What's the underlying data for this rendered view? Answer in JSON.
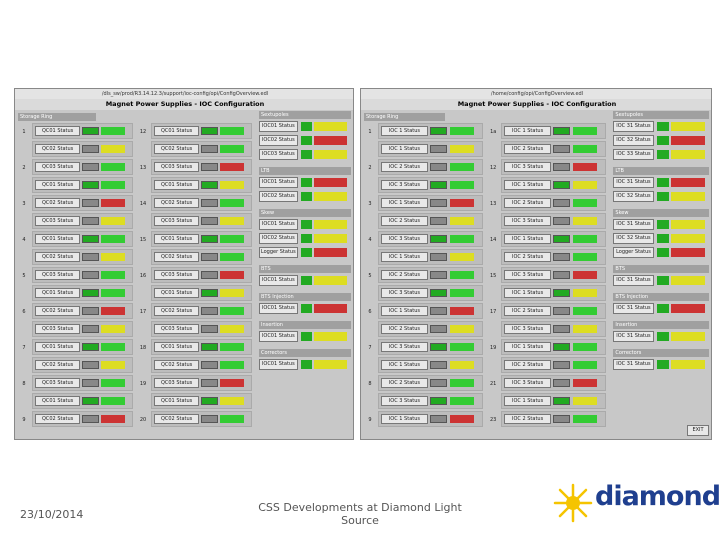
{
  "left_window": {
    "path": "/dls_sw/prod/R3.14.12.3/support/ioc-config/opi/ConfigOverview.edl",
    "title": "Magnet Power Supplies - IOC Configuration",
    "tab": "Storage Ring",
    "columns": [
      {
        "numbers": [
          "1",
          "2",
          "3",
          "4",
          "5",
          "6",
          "7",
          "8",
          "9"
        ],
        "rows": [
          "QC01 Status",
          "QC02 Status",
          "QC03 Status",
          "QC01 Status",
          "QC02 Status",
          "QC03 Status",
          "QC01 Status",
          "QC02 Status",
          "QC03 Status",
          "QC01 Status",
          "QC02 Status",
          "QC03 Status",
          "QC01 Status",
          "QC02 Status",
          "QC03 Status",
          "QC01 Status",
          "QC02 Status"
        ]
      },
      {
        "numbers": [
          "12",
          "13",
          "14",
          "15",
          "16",
          "17",
          "18",
          "19",
          "20"
        ],
        "rows": [
          "QC01 Status",
          "QC02 Status",
          "QC03 Status",
          "QC01 Status",
          "QC02 Status",
          "QC03 Status",
          "QC01 Status",
          "QC02 Status",
          "QC03 Status",
          "QC01 Status",
          "QC02 Status",
          "QC03 Status",
          "QC01 Status",
          "QC02 Status",
          "QC03 Status",
          "QC01 Status",
          "QC02 Status"
        ]
      }
    ],
    "sections": [
      {
        "header": "Sextupoles",
        "rows": [
          "IOC01 Status",
          "IOC02 Status",
          "IOC03 Status"
        ]
      },
      {
        "header": "LTB",
        "rows": [
          "IOC01 Status",
          "IOC02 Status"
        ]
      },
      {
        "header": "Skew",
        "rows": [
          "IOC01 Status",
          "IOC02 Status",
          "Logger Status"
        ]
      },
      {
        "header": "BTS",
        "rows": [
          "IOC01 Status"
        ]
      },
      {
        "header": "BTS Injection",
        "rows": [
          "IOC01 Status"
        ]
      },
      {
        "header": "Insertion",
        "rows": [
          "IOC01 Status"
        ]
      },
      {
        "header": "Correctors",
        "rows": [
          "IOC01 Status"
        ]
      }
    ]
  },
  "right_window": {
    "path": "/home/config/opi/ConfigOverview.edl",
    "title": "Magnet Power Supplies - IOC Configuration",
    "tab": "Storage Ring",
    "columns": [
      {
        "numbers": [
          "1",
          "2",
          "3",
          "4",
          "5",
          "6",
          "7",
          "8",
          "9"
        ],
        "rows": [
          "IOC 1 Status",
          "IOC 1 Status",
          "IOC 2 Status",
          "IOC 3 Status",
          "IOC 1 Status",
          "IOC 2 Status",
          "IOC 3 Status",
          "IOC 1 Status",
          "IOC 2 Status",
          "IOC 3 Status",
          "IOC 1 Status",
          "IOC 2 Status",
          "IOC 3 Status",
          "IOC 1 Status",
          "IOC 2 Status",
          "IOC 3 Status",
          "IOC 1 Status"
        ]
      },
      {
        "numbers": [
          "1a",
          "12",
          "13",
          "14",
          "15",
          "17",
          "19",
          "21",
          "23"
        ],
        "rows": [
          "IOC 1 Status",
          "IOC 2 Status",
          "IOC 3 Status",
          "IOC 1 Status",
          "IOC 2 Status",
          "IOC 3 Status",
          "IOC 1 Status",
          "IOC 2 Status",
          "IOC 3 Status",
          "IOC 1 Status",
          "IOC 2 Status",
          "IOC 3 Status",
          "IOC 1 Status",
          "IOC 2 Status",
          "IOC 3 Status",
          "IOC 1 Status",
          "IOC 2 Status"
        ]
      }
    ],
    "sections": [
      {
        "header": "Sextupoles",
        "rows": [
          "IOC 31 Status",
          "IOC 32 Status",
          "IOC 33 Status"
        ]
      },
      {
        "header": "LTB",
        "rows": [
          "IOC 31 Status",
          "IOC 32 Status"
        ]
      },
      {
        "header": "Skew",
        "rows": [
          "IOC 31 Status",
          "IOC 32 Status",
          "Logger Status"
        ]
      },
      {
        "header": "BTS",
        "rows": [
          "IOC 31 Status"
        ]
      },
      {
        "header": "BTS Injection",
        "rows": [
          "IOC 31 Status"
        ]
      },
      {
        "header": "Insertion",
        "rows": [
          "IOC 31 Status"
        ]
      },
      {
        "header": "Correctors",
        "rows": [
          "IOC 31 Status"
        ]
      }
    ],
    "exit": "EXIT"
  },
  "footer": {
    "date": "23/10/2014",
    "title": "CSS Developments at Diamond Light Source",
    "logo": "diamond"
  }
}
